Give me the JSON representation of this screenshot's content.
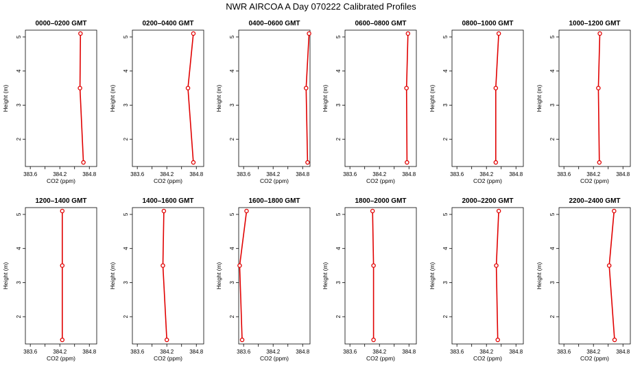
{
  "page": {
    "title": "NWR AIRCOA A  Day 070222  Calibrated Profiles"
  },
  "colors": {
    "line": "#e00000",
    "axis": "#000000"
  },
  "chart_data": [
    {
      "type": "line",
      "title": "0000–0200 GMT",
      "xlabel": "CO2 (ppm)",
      "ylabel": "Height (m)",
      "xlim": [
        383.5,
        384.95
      ],
      "ylim": [
        1.2,
        5.2
      ],
      "xticks": [
        "383.6",
        "384.2",
        "384.8"
      ],
      "yticks": [
        "2",
        "3",
        "4",
        "5"
      ],
      "x": [
        384.62,
        384.61,
        384.68
      ],
      "y": [
        5.1,
        3.5,
        1.32
      ]
    },
    {
      "type": "line",
      "title": "0200–0400 GMT",
      "xlabel": "CO2 (ppm)",
      "ylabel": "Height (m)",
      "xlim": [
        383.5,
        384.95
      ],
      "ylim": [
        1.2,
        5.2
      ],
      "xticks": [
        "383.6",
        "384.2",
        "384.8"
      ],
      "yticks": [
        "2",
        "3",
        "4",
        "5"
      ],
      "x": [
        384.74,
        384.63,
        384.74
      ],
      "y": [
        5.1,
        3.5,
        1.32
      ]
    },
    {
      "type": "line",
      "title": "0400–0600 GMT",
      "xlabel": "CO2 (ppm)",
      "ylabel": "Height (m)",
      "xlim": [
        383.5,
        384.95
      ],
      "ylim": [
        1.2,
        5.2
      ],
      "xticks": [
        "383.6",
        "384.2",
        "384.8"
      ],
      "yticks": [
        "2",
        "3",
        "4",
        "5"
      ],
      "x": [
        384.93,
        384.87,
        384.9
      ],
      "y": [
        5.1,
        3.5,
        1.32
      ]
    },
    {
      "type": "line",
      "title": "0600–0800 GMT",
      "xlabel": "CO2 (ppm)",
      "ylabel": "Height (m)",
      "xlim": [
        383.5,
        384.95
      ],
      "ylim": [
        1.2,
        5.2
      ],
      "xticks": [
        "383.6",
        "384.2",
        "384.8"
      ],
      "yticks": [
        "2",
        "3",
        "4",
        "5"
      ],
      "x": [
        384.78,
        384.75,
        384.76
      ],
      "y": [
        5.1,
        3.5,
        1.32
      ]
    },
    {
      "type": "line",
      "title": "0800–1000 GMT",
      "xlabel": "CO2 (ppm)",
      "ylabel": "Height (m)",
      "xlim": [
        383.5,
        384.95
      ],
      "ylim": [
        1.2,
        5.2
      ],
      "xticks": [
        "383.6",
        "384.2",
        "384.8"
      ],
      "yticks": [
        "2",
        "3",
        "4",
        "5"
      ],
      "x": [
        384.45,
        384.39,
        384.39
      ],
      "y": [
        5.1,
        3.5,
        1.32
      ]
    },
    {
      "type": "line",
      "title": "1000–1200 GMT",
      "xlabel": "CO2 (ppm)",
      "ylabel": "Height (m)",
      "xlim": [
        383.5,
        384.95
      ],
      "ylim": [
        1.2,
        5.2
      ],
      "xticks": [
        "383.6",
        "384.2",
        "384.8"
      ],
      "yticks": [
        "2",
        "3",
        "4",
        "5"
      ],
      "x": [
        384.33,
        384.3,
        384.32
      ],
      "y": [
        5.1,
        3.5,
        1.32
      ]
    },
    {
      "type": "line",
      "title": "1200–1400 GMT",
      "xlabel": "CO2 (ppm)",
      "ylabel": "Height (m)",
      "xlim": [
        383.5,
        384.95
      ],
      "ylim": [
        1.2,
        5.2
      ],
      "xticks": [
        "383.6",
        "384.2",
        "384.8"
      ],
      "yticks": [
        "2",
        "3",
        "4",
        "5"
      ],
      "x": [
        384.25,
        384.25,
        384.25
      ],
      "y": [
        5.1,
        3.5,
        1.32
      ]
    },
    {
      "type": "line",
      "title": "1400–1600 GMT",
      "xlabel": "CO2 (ppm)",
      "ylabel": "Height (m)",
      "xlim": [
        383.5,
        384.95
      ],
      "ylim": [
        1.2,
        5.2
      ],
      "xticks": [
        "383.6",
        "384.2",
        "384.8"
      ],
      "yticks": [
        "2",
        "3",
        "4",
        "5"
      ],
      "x": [
        384.14,
        384.12,
        384.2
      ],
      "y": [
        5.1,
        3.5,
        1.32
      ]
    },
    {
      "type": "line",
      "title": "1600–1800 GMT",
      "xlabel": "CO2 (ppm)",
      "ylabel": "Height (m)",
      "xlim": [
        383.5,
        384.95
      ],
      "ylim": [
        1.2,
        5.2
      ],
      "xticks": [
        "383.6",
        "384.2",
        "384.8"
      ],
      "yticks": [
        "2",
        "3",
        "4",
        "5"
      ],
      "x": [
        383.66,
        383.52,
        383.57
      ],
      "y": [
        5.1,
        3.5,
        1.32
      ]
    },
    {
      "type": "line",
      "title": "1800–2000 GMT",
      "xlabel": "CO2 (ppm)",
      "ylabel": "Height (m)",
      "xlim": [
        383.5,
        384.95
      ],
      "ylim": [
        1.2,
        5.2
      ],
      "xticks": [
        "383.6",
        "384.2",
        "384.8"
      ],
      "yticks": [
        "2",
        "3",
        "4",
        "5"
      ],
      "x": [
        384.06,
        384.08,
        384.08
      ],
      "y": [
        5.1,
        3.5,
        1.32
      ]
    },
    {
      "type": "line",
      "title": "2000–2200 GMT",
      "xlabel": "CO2 (ppm)",
      "ylabel": "Height (m)",
      "xlim": [
        383.5,
        384.95
      ],
      "ylim": [
        1.2,
        5.2
      ],
      "xticks": [
        "383.6",
        "384.2",
        "384.8"
      ],
      "yticks": [
        "2",
        "3",
        "4",
        "5"
      ],
      "x": [
        384.45,
        384.4,
        384.43
      ],
      "y": [
        5.1,
        3.5,
        1.32
      ]
    },
    {
      "type": "line",
      "title": "2200–2400 GMT",
      "xlabel": "CO2 (ppm)",
      "ylabel": "Height (m)",
      "xlim": [
        383.5,
        384.95
      ],
      "ylim": [
        1.2,
        5.2
      ],
      "xticks": [
        "383.6",
        "384.2",
        "384.8"
      ],
      "yticks": [
        "2",
        "3",
        "4",
        "5"
      ],
      "x": [
        384.62,
        384.52,
        384.63
      ],
      "y": [
        5.1,
        3.5,
        1.32
      ]
    }
  ]
}
